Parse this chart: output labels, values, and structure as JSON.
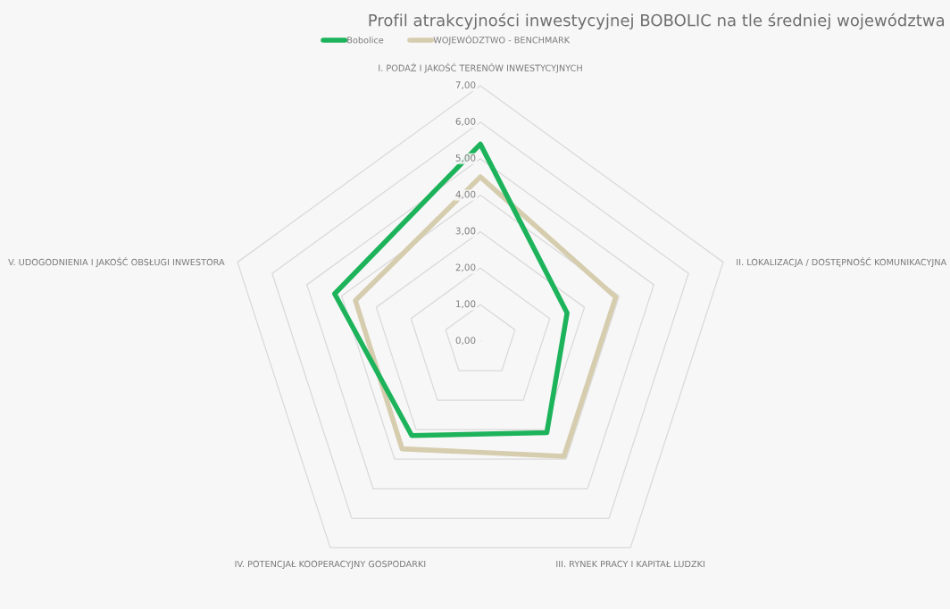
{
  "chart_data": {
    "type": "radar",
    "title": "Profil atrakcyjności inwestycyjnej BOBOLIC na tle średniej województwa",
    "categories": [
      "I. PODAŻ I JAKOŚĆ TERENÓW INWESTYCYJNYCH",
      "II. LOKALIZACJA / DOSTĘPNOŚĆ KOMUNIKACYJNA",
      "III. RYNEK PRACY I KAPITAŁ LUDZKI",
      "IV. POTENCJAŁ KOOPERACYJNY GOSPODARKI",
      "V. UDOGODNIENIA I JAKOŚĆ OBSŁUGI INWESTORA"
    ],
    "series": [
      {
        "name": "Bobolice",
        "color": "#1db35b",
        "values": [
          5.4,
          2.5,
          3.1,
          3.2,
          4.2
        ]
      },
      {
        "name": "WOJEWÓDZTWO - BENCHMARK",
        "color": "#d6ccae",
        "values": [
          4.5,
          3.9,
          3.9,
          3.65,
          3.6
        ]
      }
    ],
    "ylim": [
      0,
      7
    ],
    "yticks": [
      {
        "value": 0,
        "label": "0,00"
      },
      {
        "value": 1,
        "label": "1,00"
      },
      {
        "value": 2,
        "label": "2,00"
      },
      {
        "value": 3,
        "label": "3,00"
      },
      {
        "value": 4,
        "label": "4,00"
      },
      {
        "value": 5,
        "label": "5,00"
      },
      {
        "value": 6,
        "label": "6,00"
      },
      {
        "value": 7,
        "label": "7,00"
      }
    ],
    "grid": true,
    "legend": "top",
    "marker": "none",
    "line_style": "solid"
  }
}
